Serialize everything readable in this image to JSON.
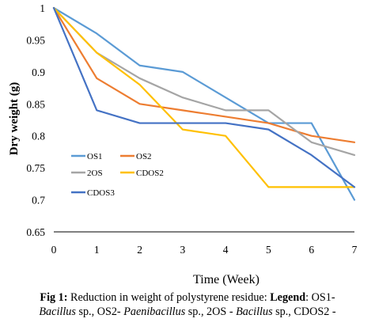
{
  "chart_data": {
    "type": "line",
    "xlabel": "Time (Week)",
    "ylabel": "Dry weight (g)",
    "x": [
      0,
      1,
      2,
      3,
      4,
      5,
      6,
      7
    ],
    "xlim": [
      0,
      7
    ],
    "ylim": [
      0.65,
      1.0
    ],
    "x_ticks": [
      "0",
      "1",
      "2",
      "3",
      "4",
      "5",
      "6",
      "7"
    ],
    "y_ticks": [
      "0.65",
      "0.7",
      "0.75",
      "0.8",
      "0.85",
      "0.9",
      "0.95",
      "1"
    ],
    "grid": false,
    "legend_position": "bottom-left inside",
    "series": [
      {
        "name": "OS1",
        "color": "#5B9BD5",
        "values": [
          1.0,
          0.96,
          0.91,
          0.9,
          0.86,
          0.82,
          0.82,
          0.7
        ]
      },
      {
        "name": "OS2",
        "color": "#ED7D31",
        "values": [
          1.0,
          0.89,
          0.85,
          0.84,
          0.83,
          0.82,
          0.8,
          0.79
        ]
      },
      {
        "name": "2OS",
        "color": "#A5A5A5",
        "values": [
          1.0,
          0.93,
          0.89,
          0.86,
          0.84,
          0.84,
          0.79,
          0.77
        ]
      },
      {
        "name": "CDOS2",
        "color": "#FFC000",
        "values": [
          1.0,
          0.93,
          0.88,
          0.81,
          0.8,
          0.72,
          0.72,
          0.72
        ]
      },
      {
        "name": "CDOS3",
        "color": "#4472C4",
        "values": [
          1.0,
          0.84,
          0.82,
          0.82,
          0.82,
          0.81,
          0.77,
          0.72
        ]
      }
    ]
  },
  "caption": {
    "fig_label": "Fig 1:",
    "line1_text": " Reduction in weight of polystyrene residue: ",
    "legend_label": "Legend",
    "line1_end": ": OS1-",
    "line2_parts": [
      {
        "text": "Bacillus",
        "italic": true
      },
      {
        "text": " sp., OS2- ",
        "italic": false
      },
      {
        "text": "Paenibacillus",
        "italic": true
      },
      {
        "text": " sp., 2OS - ",
        "italic": false
      },
      {
        "text": "Bacillus",
        "italic": true
      },
      {
        "text": " sp., CDOS2 -",
        "italic": false
      }
    ]
  }
}
